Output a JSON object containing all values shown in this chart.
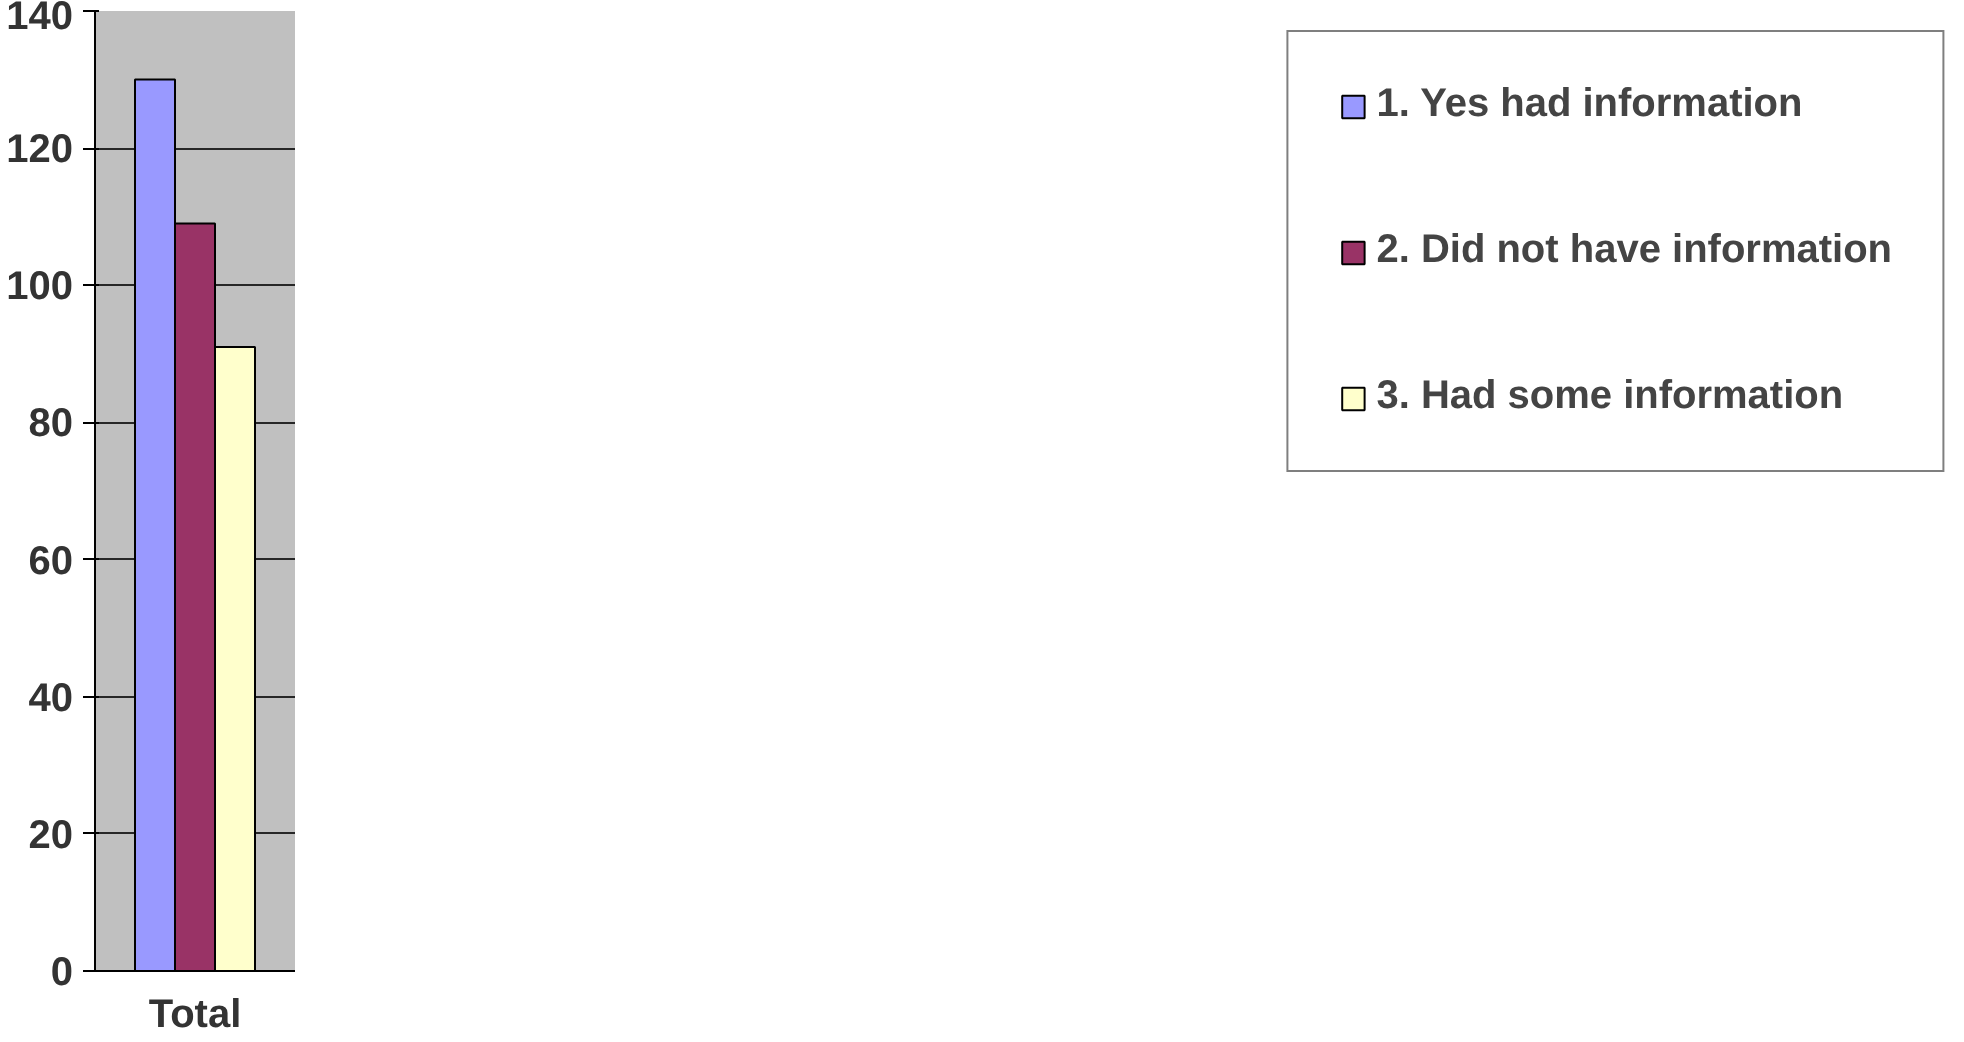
{
  "chart_data": {
    "type": "bar",
    "categories": [
      "Total"
    ],
    "series": [
      {
        "name": "1. Yes had information",
        "color": "#9999ff",
        "values": [
          130
        ]
      },
      {
        "name": "2. Did not have information",
        "color": "#993366",
        "values": [
          109
        ]
      },
      {
        "name": "3. Had some information",
        "color": "#ffffcc",
        "values": [
          91
        ]
      }
    ],
    "ylim": [
      0,
      140
    ],
    "yticks": [
      0,
      20,
      40,
      60,
      80,
      100,
      120,
      140
    ],
    "grid": "y",
    "legend": "right"
  }
}
